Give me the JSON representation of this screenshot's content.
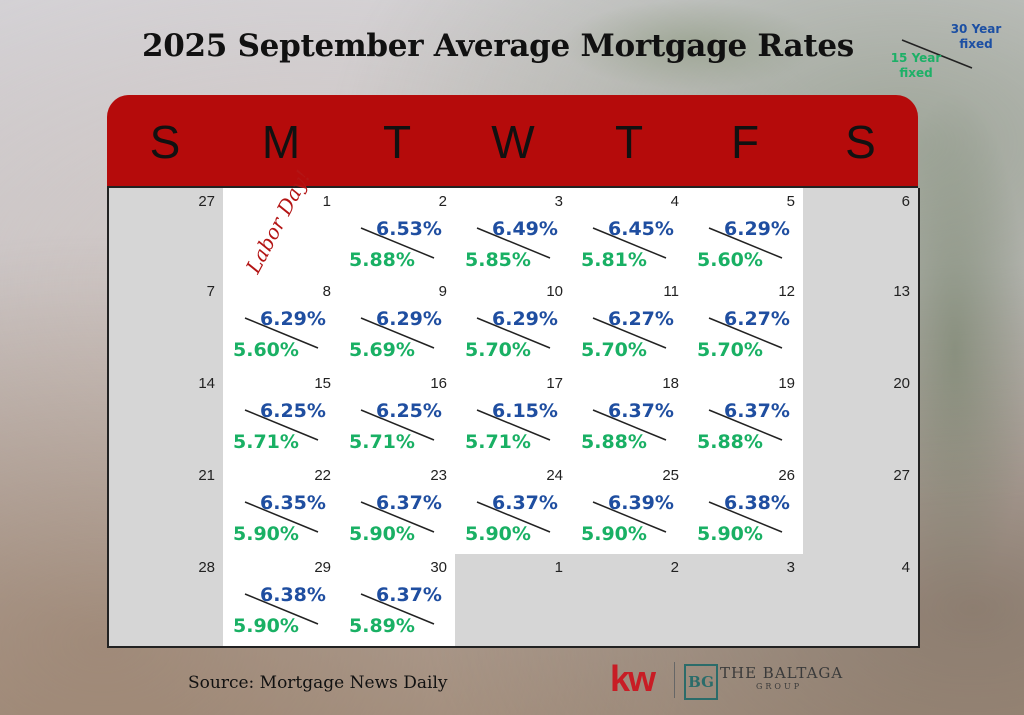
{
  "title": "2025 September Average Mortgage Rates",
  "legend": {
    "label_30": "30 Year\nfixed",
    "label_15": "15 Year\nfixed",
    "color_30": "#1f4ea0",
    "color_15": "#19b064"
  },
  "header": {
    "days": [
      "S",
      "M",
      "T",
      "W",
      "T",
      "F",
      "S"
    ],
    "color": "#b50b0b"
  },
  "holiday": {
    "label": "Labor Day!"
  },
  "weeks": [
    [
      {
        "day": "27",
        "gray": true
      },
      {
        "day": "1",
        "holiday": true
      },
      {
        "day": "2",
        "r30": "6.53%",
        "r15": "5.88%"
      },
      {
        "day": "3",
        "r30": "6.49%",
        "r15": "5.85%"
      },
      {
        "day": "4",
        "r30": "6.45%",
        "r15": "5.81%"
      },
      {
        "day": "5",
        "r30": "6.29%",
        "r15": "5.60%"
      },
      {
        "day": "6",
        "gray": true
      }
    ],
    [
      {
        "day": "7",
        "gray": true
      },
      {
        "day": "8",
        "r30": "6.29%",
        "r15": "5.60%"
      },
      {
        "day": "9",
        "r30": "6.29%",
        "r15": "5.69%"
      },
      {
        "day": "10",
        "r30": "6.29%",
        "r15": "5.70%"
      },
      {
        "day": "11",
        "r30": "6.27%",
        "r15": "5.70%"
      },
      {
        "day": "12",
        "r30": "6.27%",
        "r15": "5.70%"
      },
      {
        "day": "13",
        "gray": true
      }
    ],
    [
      {
        "day": "14",
        "gray": true
      },
      {
        "day": "15",
        "r30": "6.25%",
        "r15": "5.71%"
      },
      {
        "day": "16",
        "r30": "6.25%",
        "r15": "5.71%"
      },
      {
        "day": "17",
        "r30": "6.15%",
        "r15": "5.71%"
      },
      {
        "day": "18",
        "r30": "6.37%",
        "r15": "5.88%"
      },
      {
        "day": "19",
        "r30": "6.37%",
        "r15": "5.88%"
      },
      {
        "day": "20",
        "gray": true
      }
    ],
    [
      {
        "day": "21",
        "gray": true
      },
      {
        "day": "22",
        "r30": "6.35%",
        "r15": "5.90%"
      },
      {
        "day": "23",
        "r30": "6.37%",
        "r15": "5.90%"
      },
      {
        "day": "24",
        "r30": "6.37%",
        "r15": "5.90%"
      },
      {
        "day": "25",
        "r30": "6.39%",
        "r15": "5.90%"
      },
      {
        "day": "26",
        "r30": "6.38%",
        "r15": "5.90%"
      },
      {
        "day": "27",
        "gray": true
      }
    ],
    [
      {
        "day": "28",
        "gray": true
      },
      {
        "day": "29",
        "r30": "6.38%",
        "r15": "5.90%"
      },
      {
        "day": "30",
        "r30": "6.37%",
        "r15": "5.89%"
      },
      {
        "day": "1",
        "gray": true
      },
      {
        "day": "2",
        "gray": true
      },
      {
        "day": "3",
        "gray": true
      },
      {
        "day": "4",
        "gray": true
      }
    ]
  ],
  "source": "Source: Mortgage News Daily",
  "logos": {
    "kw": "kw",
    "bg_mark": "BG",
    "bg_name": "THE BALTAGA",
    "bg_sub": "GROUP"
  }
}
